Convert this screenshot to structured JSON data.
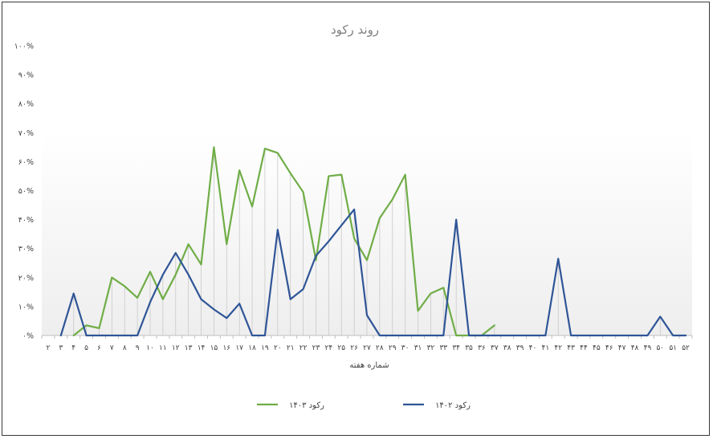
{
  "chart_data": {
    "type": "line",
    "title": "روند رکود",
    "xlabel": "شماره هفته",
    "ylabel": "",
    "ylim": [
      0,
      100
    ],
    "y_ticks": [
      "۰%",
      "۱۰%",
      "۲۰%",
      "۳۰%",
      "۴۰%",
      "۵۰%",
      "۶۰%",
      "۷۰%",
      "۸۰%",
      "۹۰%",
      "۱۰۰%"
    ],
    "categories": [
      "۲",
      "۳",
      "۴",
      "۵",
      "۶",
      "۷",
      "۸",
      "۹",
      "۱۰",
      "۱۱",
      "۱۲",
      "۱۳",
      "۱۴",
      "۱۵",
      "۱۶",
      "۱۷",
      "۱۸",
      "۱۹",
      "۲۰",
      "۲۱",
      "۲۲",
      "۲۳",
      "۲۴",
      "۲۵",
      "۲۶",
      "۲۷",
      "۲۸",
      "۲۹",
      "۳۰",
      "۳۱",
      "۳۲",
      "۳۳",
      "۳۴",
      "۳۵",
      "۳۶",
      "۳۷",
      "۳۸",
      "۳۹",
      "۴۰",
      "۴۱",
      "۴۲",
      "۴۳",
      "۴۴",
      "۴۵",
      "۴۶",
      "۴۷",
      "۴۸",
      "۴۹",
      "۵۰",
      "۵۱",
      "۵۲"
    ],
    "series": [
      {
        "name": "رکود ۱۴۰۳",
        "color": "#70ad47",
        "values": [
          null,
          null,
          0,
          3.5,
          2.5,
          20,
          17,
          13,
          22,
          12.5,
          21,
          31.5,
          24.5,
          65,
          31.5,
          57,
          44.5,
          64.5,
          63,
          56,
          49.5,
          26,
          55,
          55.5,
          33.5,
          26,
          40.5,
          47,
          55.5,
          8.5,
          14.5,
          16.5,
          0,
          0,
          0,
          3.5,
          null,
          null,
          null,
          null,
          null,
          null,
          null,
          null,
          null,
          null,
          null,
          null,
          null,
          null,
          null
        ]
      },
      {
        "name": "رکود ۱۴۰۲",
        "color": "#2f5597",
        "values": [
          null,
          0,
          14.5,
          0,
          0,
          0,
          0,
          0,
          11.5,
          21,
          28.5,
          21,
          12.5,
          9,
          6,
          11,
          0,
          0,
          36.5,
          12.5,
          16,
          27.5,
          32.5,
          38,
          43.5,
          7,
          0,
          0,
          0,
          0,
          0,
          0,
          40,
          0,
          0,
          0,
          0,
          0,
          0,
          0,
          26.5,
          0,
          0,
          0,
          0,
          0,
          0,
          0,
          6.5,
          0,
          0
        ]
      }
    ],
    "legend_position": "bottom",
    "grid": false,
    "drop_lines": true
  }
}
